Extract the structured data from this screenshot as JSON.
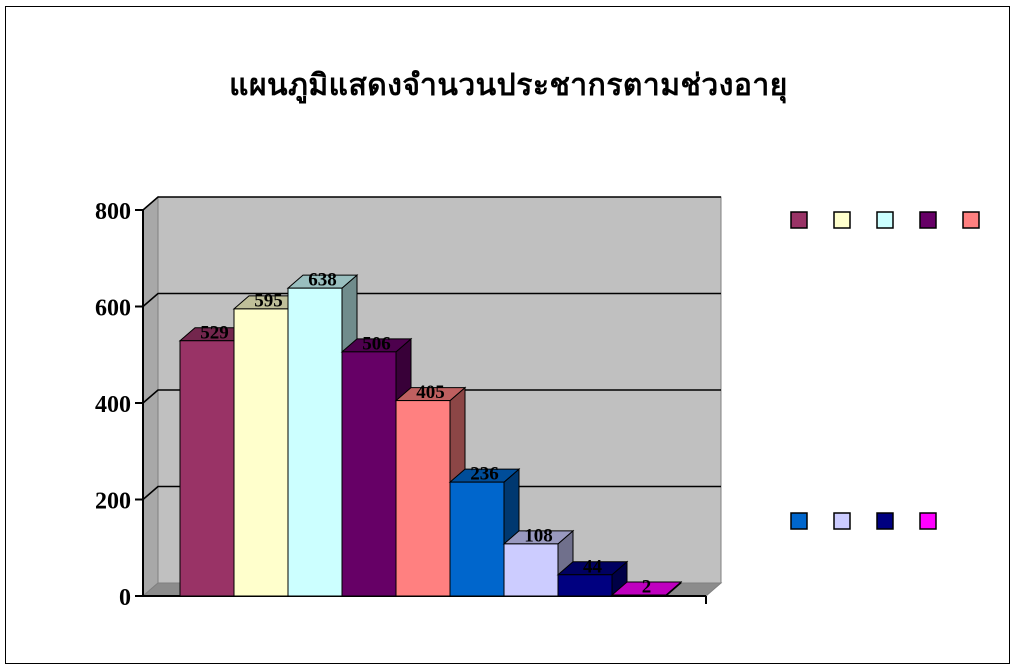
{
  "chart_data": {
    "type": "bar",
    "title": "แผนภูมิแสดงจำนวนประชากรตามช่วงอายุ",
    "xlabel": "",
    "ylabel": "",
    "ylim": [
      0,
      800
    ],
    "yticks": [
      0,
      200,
      400,
      600,
      800
    ],
    "grid": true,
    "three_d": true,
    "legend_position": "right",
    "values": [
      529,
      595,
      638,
      506,
      405,
      236,
      108,
      44,
      2
    ],
    "colors": [
      "#993366",
      "#FFFFCC",
      "#CCFFFF",
      "#660066",
      "#FF8080",
      "#0066CC",
      "#CCCCFF",
      "#000080",
      "#FF00FF"
    ],
    "legend_colors": [
      [
        "#993366",
        "#FFFFCC",
        "#CCFFFF",
        "#660066",
        "#FF8080"
      ],
      [
        "#0066CC",
        "#CCCCFF",
        "#000080",
        "#FF00FF"
      ]
    ],
    "plot_background": "#C0C0C0"
  }
}
